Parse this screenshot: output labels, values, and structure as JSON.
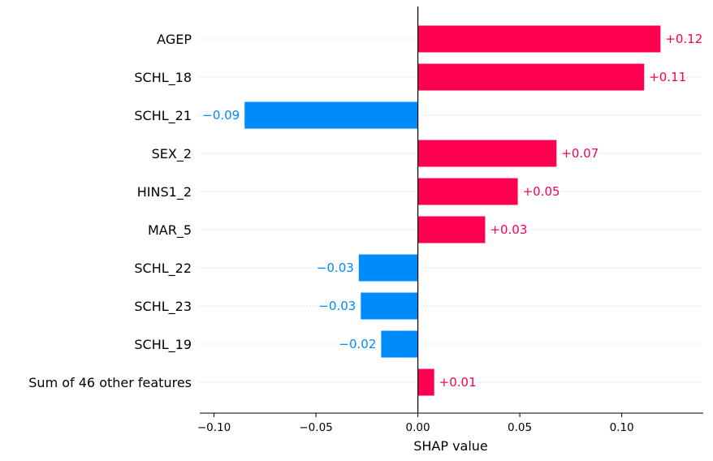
{
  "chart_data": {
    "type": "bar",
    "orientation": "horizontal",
    "categories": [
      "AGEP",
      "SCHL_18",
      "SCHL_21",
      "SEX_2",
      "HINS1_2",
      "MAR_5",
      "SCHL_22",
      "SCHL_23",
      "SCHL_19",
      "Sum of 46 other features"
    ],
    "values": [
      0.119,
      0.111,
      -0.085,
      0.068,
      0.049,
      0.033,
      -0.029,
      -0.028,
      -0.018,
      0.008
    ],
    "value_labels": [
      "+0.12",
      "+0.11",
      "−0.09",
      "+0.07",
      "+0.05",
      "+0.03",
      "−0.03",
      "−0.03",
      "−0.02",
      "+0.01"
    ],
    "xlabel": "SHAP value",
    "xlim": [
      -0.107,
      0.14
    ],
    "xticks": [
      -0.1,
      -0.05,
      0.0,
      0.05,
      0.1
    ],
    "xtick_labels": [
      "−0.10",
      "−0.05",
      "0.00",
      "0.05",
      "0.10"
    ],
    "grid": "horizontal dotted",
    "colors": {
      "positive": "#ff0051",
      "negative": "#008bfb",
      "zero_line": "#000000",
      "grid": "#cccccc"
    }
  }
}
